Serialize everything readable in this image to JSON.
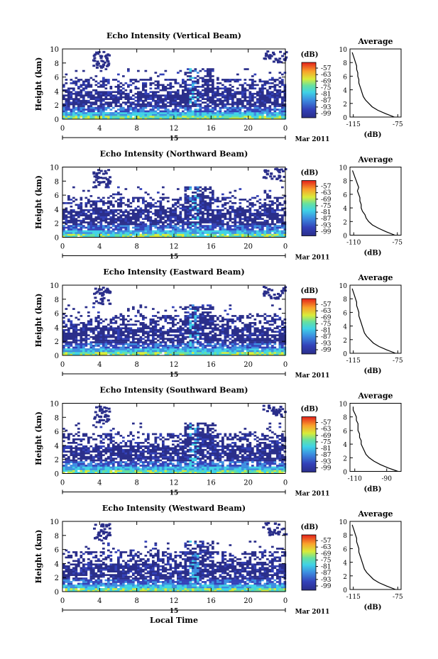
{
  "chart_data": {
    "type": "heatmap",
    "title": "",
    "xlabel": "Local Time",
    "x_ticks": [
      "0",
      "4",
      "8",
      "12",
      "16",
      "20",
      "0"
    ],
    "x_range": [
      0,
      24
    ],
    "day_label": "15",
    "month_label": "Mar 2011",
    "ylabel": "Height (km)",
    "y_ticks": [
      "0",
      "2",
      "4",
      "6",
      "8",
      "10"
    ],
    "y_range": [
      0,
      10
    ],
    "colorbar_label": "(dB)",
    "colorbar_ticks": [
      "-57",
      "-63",
      "-69",
      "-75",
      "-81",
      "-87",
      "-93",
      "-99"
    ],
    "avg_title": "Average",
    "avg_xlabel": "(dB)",
    "avg_heights": [
      0,
      0.5,
      1,
      1.5,
      2,
      2.5,
      3,
      3.5,
      4,
      4.5,
      5,
      5.5,
      6,
      6.5,
      7,
      7.5,
      8,
      8.5,
      9,
      9.5
    ],
    "panels": [
      {
        "title": "Echo Intensity (Vertical Beam)",
        "avg_xticks": [
          "-115",
          "-75"
        ],
        "avg_xlim": [
          -118,
          -72
        ],
        "avg_values": [
          -78,
          -86,
          -93,
          -98,
          -101,
          -104,
          -106,
          -107,
          -108,
          -109,
          -110,
          -110,
          -111,
          -111,
          -112,
          -112,
          -113,
          -114,
          -115,
          -116
        ]
      },
      {
        "title": "Echo Intensity (Northward Beam)",
        "avg_xticks": [
          "-110",
          "-75"
        ],
        "avg_xlim": [
          -113,
          -72
        ],
        "avg_values": [
          -77,
          -84,
          -90,
          -95,
          -98,
          -100,
          -101,
          -103,
          -104,
          -104,
          -105,
          -105,
          -106,
          -107,
          -106,
          -107,
          -108,
          -109,
          -110,
          -111
        ]
      },
      {
        "title": "Echo Intensity (Eastward Beam)",
        "avg_xticks": [
          "-115",
          "-75"
        ],
        "avg_xlim": [
          -118,
          -72
        ],
        "avg_values": [
          -77,
          -85,
          -92,
          -97,
          -100,
          -103,
          -105,
          -106,
          -107,
          -108,
          -109,
          -110,
          -110,
          -111,
          -112,
          -112,
          -113,
          -114,
          -115,
          -116
        ]
      },
      {
        "title": "Echo Intensity (Southward Beam)",
        "avg_xticks": [
          "-110",
          "-90"
        ],
        "avg_xlim": [
          -113,
          -81
        ],
        "avg_values": [
          -83,
          -89,
          -94,
          -98,
          -101,
          -103,
          -104,
          -105,
          -106,
          -106,
          -107,
          -107,
          -108,
          -108,
          -108,
          -109,
          -109,
          -110,
          -111,
          -111
        ]
      },
      {
        "title": "Echo Intensity (Westward Beam)",
        "avg_xticks": [
          "-115",
          "-75"
        ],
        "avg_xlim": [
          -118,
          -72
        ],
        "avg_values": [
          -77,
          -85,
          -92,
          -97,
          -100,
          -103,
          -105,
          -106,
          -107,
          -108,
          -109,
          -110,
          -110,
          -111,
          -112,
          -112,
          -113,
          -114,
          -115,
          -116
        ]
      }
    ]
  }
}
